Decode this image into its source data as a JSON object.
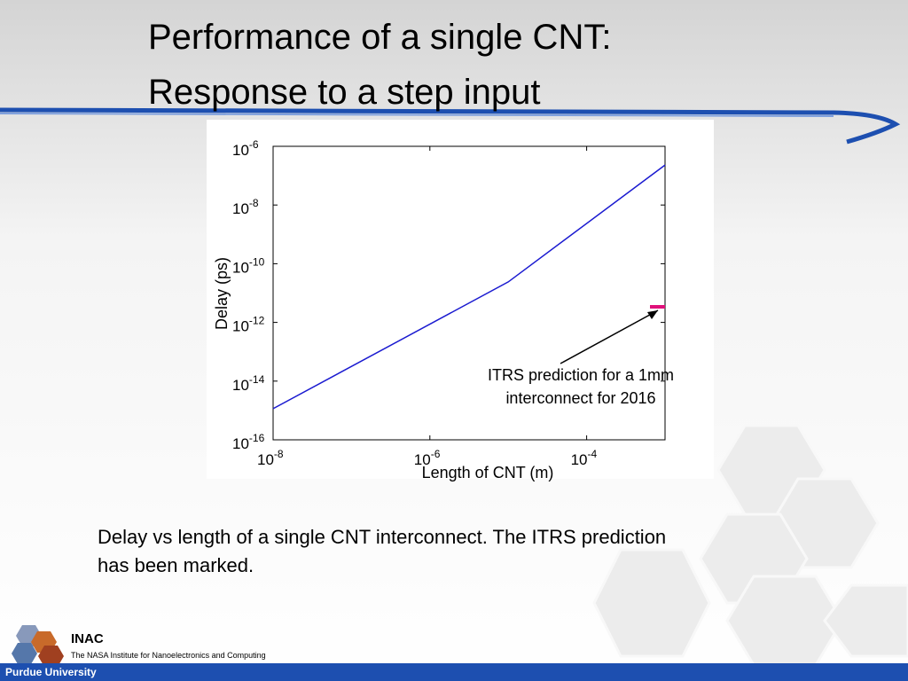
{
  "title_lines": [
    "Performance of a single CNT:",
    "Response to a step input"
  ],
  "chart_data": {
    "type": "line",
    "xlabel": "Length of CNT (m)",
    "ylabel": "Delay (ps)",
    "xscale": "log",
    "yscale": "log",
    "xlim": [
      1e-08,
      0.001
    ],
    "ylim": [
      1e-16,
      1e-06
    ],
    "xticks": [
      {
        "value": 1e-08,
        "label": "10",
        "exponent": "-8"
      },
      {
        "value": 1e-06,
        "label": "10",
        "exponent": "-6"
      },
      {
        "value": 0.0001,
        "label": "10",
        "exponent": "-4"
      }
    ],
    "yticks": [
      {
        "value": 1e-16,
        "label": "10",
        "exponent": "-16"
      },
      {
        "value": 1e-14,
        "label": "10",
        "exponent": "-14"
      },
      {
        "value": 1e-12,
        "label": "10",
        "exponent": "-12"
      },
      {
        "value": 1e-10,
        "label": "10",
        "exponent": "-10"
      },
      {
        "value": 1e-08,
        "label": "10",
        "exponent": "-8"
      },
      {
        "value": 1e-06,
        "label": "10",
        "exponent": "-6"
      }
    ],
    "series": [
      {
        "color": "#1a1ad0",
        "x": [
          1e-08,
          1e-05,
          0.001
        ],
        "values": [
          1.15e-15,
          2.4e-11,
          2.3e-07
        ]
      }
    ],
    "annotation": {
      "lines": [
        "ITRS prediction for a 1mm",
        "interconnect for 2016"
      ],
      "x": 0.001,
      "y": 3.4e-12,
      "color": "#e0107a"
    }
  },
  "caption": [
    "Delay vs length of a single CNT interconnect. The ITRS prediction",
    "has been marked."
  ],
  "footer": {
    "org": "INAC",
    "org_full": "The NASA Institute for Nanoelectronics and Computing",
    "university": "Purdue University"
  }
}
